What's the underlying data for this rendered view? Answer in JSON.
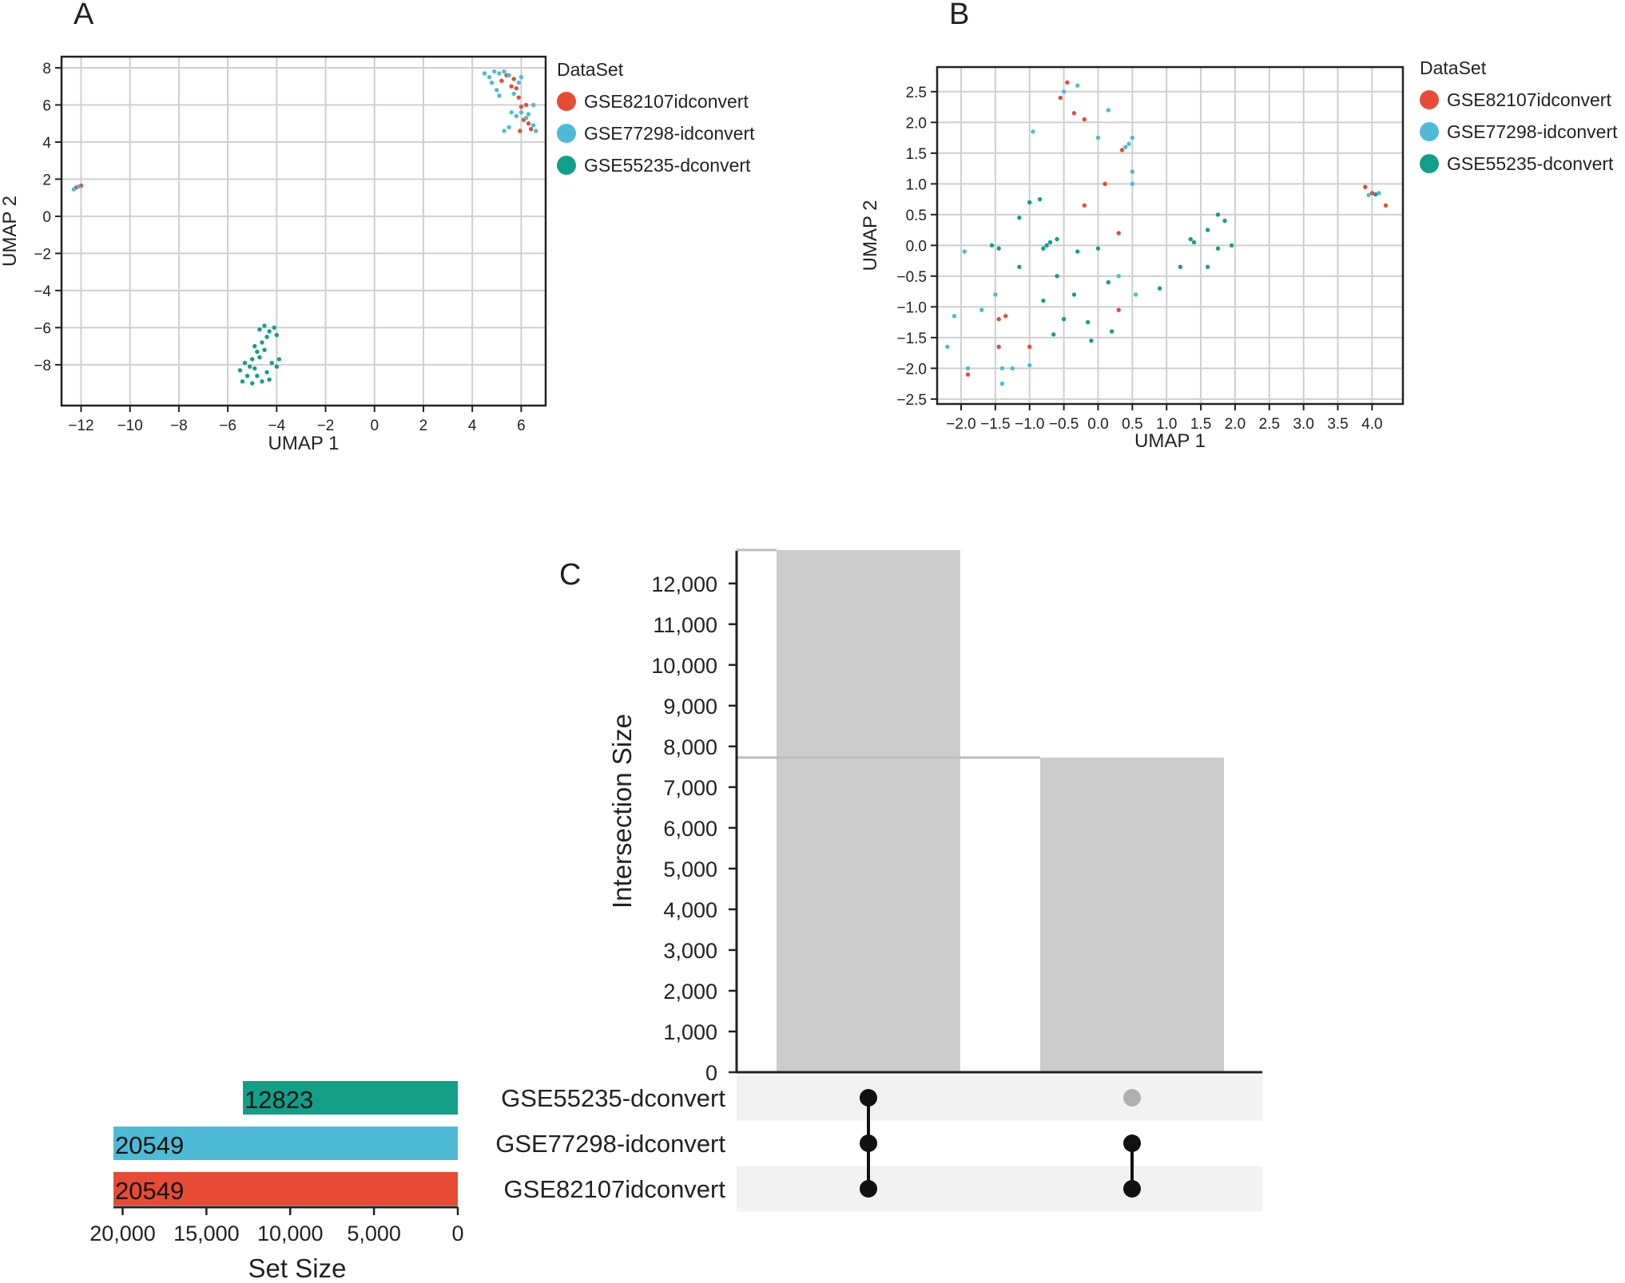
{
  "panels": {
    "a": {
      "label": "A"
    },
    "b": {
      "label": "B"
    },
    "c": {
      "label": "C"
    }
  },
  "legend": {
    "title": "DataSet",
    "entries": [
      {
        "name": "GSE82107idconvert",
        "color": "#E64B35"
      },
      {
        "name": "GSE77298-idconvert",
        "color": "#4DBBD5"
      },
      {
        "name": "GSE55235-dconvert",
        "color": "#139F87"
      }
    ]
  },
  "chart_data": [
    {
      "panel": "A",
      "type": "scatter",
      "xlabel": "UMAP 1",
      "ylabel": "UMAP 2",
      "xlim": [
        -12.8,
        7.0
      ],
      "ylim": [
        -10.2,
        8.6
      ],
      "xticks": [
        -12,
        -10,
        -8,
        -6,
        -4,
        -2,
        0,
        2,
        4,
        6
      ],
      "xtick_labels": [
        "−12",
        "−10",
        "−8",
        "−6",
        "−4",
        "−2",
        "0",
        "2",
        "4",
        "6"
      ],
      "yticks": [
        8,
        6,
        4,
        2,
        0,
        -2,
        -4,
        -6,
        -8
      ],
      "ytick_labels": [
        "8",
        "6",
        "4",
        "2",
        "0",
        "−2",
        "−4",
        "−6",
        "−8"
      ],
      "grid": true,
      "legend_position": "right",
      "series": [
        {
          "name": "GSE82107idconvert",
          "color": "#E64B35",
          "points": [
            [
              -12.2,
              1.55
            ],
            [
              -12.0,
              1.65
            ],
            [
              5.2,
              7.3
            ],
            [
              5.4,
              7.6
            ],
            [
              5.6,
              7.0
            ],
            [
              5.8,
              6.9
            ],
            [
              5.9,
              6.4
            ],
            [
              6.0,
              5.9
            ],
            [
              6.2,
              6.0
            ],
            [
              6.1,
              5.2
            ],
            [
              6.3,
              5.0
            ],
            [
              5.95,
              4.6
            ],
            [
              6.4,
              4.7
            ],
            [
              5.7,
              7.4
            ]
          ]
        },
        {
          "name": "GSE77298-idconvert",
          "color": "#4DBBD5",
          "points": [
            [
              -12.3,
              1.45
            ],
            [
              -12.1,
              1.6
            ],
            [
              4.5,
              7.7
            ],
            [
              4.7,
              7.5
            ],
            [
              4.9,
              7.8
            ],
            [
              5.1,
              7.7
            ],
            [
              5.3,
              7.8
            ],
            [
              4.8,
              7.2
            ],
            [
              5.0,
              6.8
            ],
            [
              5.1,
              6.5
            ],
            [
              5.5,
              7.6
            ],
            [
              5.7,
              6.6
            ],
            [
              5.9,
              7.2
            ],
            [
              6.0,
              7.5
            ],
            [
              5.6,
              5.6
            ],
            [
              5.8,
              5.4
            ],
            [
              6.0,
              5.6
            ],
            [
              6.2,
              5.3
            ],
            [
              6.5,
              4.9
            ],
            [
              6.6,
              4.6
            ],
            [
              5.3,
              4.6
            ],
            [
              5.5,
              4.8
            ],
            [
              6.3,
              5.5
            ],
            [
              6.5,
              6.0
            ]
          ]
        },
        {
          "name": "GSE55235-dconvert",
          "color": "#139F87",
          "points": [
            [
              -5.3,
              -7.9
            ],
            [
              -5.5,
              -8.3
            ],
            [
              -5.2,
              -8.6
            ],
            [
              -4.9,
              -8.2
            ],
            [
              -5.0,
              -7.7
            ],
            [
              -4.8,
              -7.3
            ],
            [
              -4.6,
              -6.8
            ],
            [
              -4.7,
              -6.1
            ],
            [
              -4.5,
              -5.9
            ],
            [
              -4.3,
              -6.2
            ],
            [
              -4.1,
              -6.0
            ],
            [
              -4.0,
              -6.4
            ],
            [
              -4.4,
              -6.5
            ],
            [
              -4.2,
              -7.9
            ],
            [
              -4.0,
              -8.1
            ],
            [
              -3.9,
              -7.7
            ],
            [
              -4.6,
              -8.9
            ],
            [
              -4.8,
              -8.6
            ],
            [
              -5.0,
              -9.0
            ],
            [
              -5.1,
              -8.1
            ],
            [
              -4.4,
              -8.4
            ],
            [
              -4.3,
              -8.8
            ],
            [
              -4.7,
              -7.6
            ],
            [
              -4.5,
              -7.2
            ],
            [
              -5.4,
              -8.9
            ],
            [
              -4.9,
              -7.0
            ]
          ]
        }
      ]
    },
    {
      "panel": "B",
      "type": "scatter",
      "xlabel": "UMAP 1",
      "ylabel": "UMAP 2",
      "xlim": [
        -2.35,
        4.45
      ],
      "ylim": [
        -2.58,
        2.9
      ],
      "xticks": [
        -2.0,
        -1.5,
        -1.0,
        -0.5,
        0.0,
        0.5,
        1.0,
        1.5,
        2.0,
        2.5,
        3.0,
        3.5,
        4.0
      ],
      "xtick_labels": [
        "−2.0",
        "−1.5",
        "−1.0",
        "−0.5",
        "0.0",
        "0.5",
        "1.0",
        "1.5",
        "2.0",
        "2.5",
        "3.0",
        "3.5",
        "4.0"
      ],
      "yticks": [
        2.5,
        2.0,
        1.5,
        1.0,
        0.5,
        0.0,
        -0.5,
        -1.0,
        -1.5,
        -2.0,
        -2.5
      ],
      "ytick_labels": [
        "2.5",
        "2.0",
        "1.5",
        "1.0",
        "0.5",
        "0.0",
        "−0.5",
        "−1.0",
        "−1.5",
        "−2.0",
        "−2.5"
      ],
      "grid": true,
      "legend_position": "right",
      "series": [
        {
          "name": "GSE82107idconvert",
          "color": "#E64B35",
          "points": [
            [
              -0.45,
              2.65
            ],
            [
              -0.55,
              2.4
            ],
            [
              -0.35,
              2.15
            ],
            [
              -0.2,
              2.05
            ],
            [
              0.35,
              1.55
            ],
            [
              0.1,
              1.0
            ],
            [
              -0.2,
              0.65
            ],
            [
              0.3,
              0.2
            ],
            [
              0.3,
              -1.05
            ],
            [
              -1.35,
              -1.15
            ],
            [
              -1.45,
              -1.2
            ],
            [
              -1.45,
              -1.65
            ],
            [
              -1.0,
              -1.65
            ],
            [
              -1.9,
              -2.1
            ],
            [
              3.9,
              0.95
            ],
            [
              4.2,
              0.65
            ],
            [
              4.0,
              0.85
            ]
          ]
        },
        {
          "name": "GSE77298-idconvert",
          "color": "#4DBBD5",
          "points": [
            [
              -0.3,
              2.6
            ],
            [
              -0.5,
              2.5
            ],
            [
              0.15,
              2.2
            ],
            [
              -0.95,
              1.85
            ],
            [
              0.0,
              1.75
            ],
            [
              0.5,
              1.75
            ],
            [
              0.45,
              1.65
            ],
            [
              0.4,
              1.6
            ],
            [
              0.5,
              1.2
            ],
            [
              0.5,
              1.0
            ],
            [
              0.3,
              -0.5
            ],
            [
              0.55,
              -0.8
            ],
            [
              -1.95,
              -0.1
            ],
            [
              -1.5,
              -0.8
            ],
            [
              -1.7,
              -1.05
            ],
            [
              -2.1,
              -1.15
            ],
            [
              -2.2,
              -1.65
            ],
            [
              -1.4,
              -2.0
            ],
            [
              -1.25,
              -2.0
            ],
            [
              -1.0,
              -1.95
            ],
            [
              -1.9,
              -2.0
            ],
            [
              -1.4,
              -2.25
            ],
            [
              3.95,
              0.82
            ],
            [
              4.1,
              0.85
            ]
          ]
        },
        {
          "name": "GSE55235-dconvert",
          "color": "#139F87",
          "points": [
            [
              -0.85,
              0.75
            ],
            [
              -1.0,
              0.7
            ],
            [
              -1.15,
              0.45
            ],
            [
              -0.8,
              -0.05
            ],
            [
              -0.75,
              0.0
            ],
            [
              -0.7,
              0.05
            ],
            [
              -0.6,
              0.1
            ],
            [
              -1.45,
              -0.05
            ],
            [
              -1.55,
              0.0
            ],
            [
              -0.3,
              -0.1
            ],
            [
              0.0,
              -0.05
            ],
            [
              -0.6,
              -0.5
            ],
            [
              -0.8,
              -0.9
            ],
            [
              -0.35,
              -0.8
            ],
            [
              -0.5,
              -1.2
            ],
            [
              -0.15,
              -1.25
            ],
            [
              0.15,
              -0.6
            ],
            [
              0.9,
              -0.7
            ],
            [
              -0.65,
              -1.45
            ],
            [
              -0.1,
              -1.55
            ],
            [
              0.2,
              -1.4
            ],
            [
              -1.15,
              -0.35
            ],
            [
              1.2,
              -0.35
            ],
            [
              1.4,
              0.05
            ],
            [
              1.35,
              0.1
            ],
            [
              1.6,
              0.25
            ],
            [
              1.75,
              0.5
            ],
            [
              1.85,
              0.4
            ],
            [
              1.95,
              0.0
            ],
            [
              1.75,
              -0.05
            ],
            [
              1.6,
              -0.35
            ],
            [
              4.05,
              0.83
            ]
          ]
        }
      ]
    },
    {
      "panel": "C",
      "type": "bar",
      "ylabel": "Intersection Size",
      "ylim": [
        0,
        12800
      ],
      "yticks": [
        0,
        1000,
        2000,
        3000,
        4000,
        5000,
        6000,
        7000,
        8000,
        9000,
        10000,
        11000,
        12000
      ],
      "ytick_labels": [
        "0",
        "1,000",
        "2,000",
        "3,000",
        "4,000",
        "5,000",
        "6,000",
        "7,000",
        "8,000",
        "9,000",
        "10,000",
        "11,000",
        "12,000"
      ],
      "values": [
        12823,
        7726
      ],
      "bar_color": "#CCCCCC",
      "sets": [
        {
          "name": "GSE55235-dconvert",
          "size": 12823,
          "size_label": "12823",
          "color": "#139F87"
        },
        {
          "name": "GSE77298-idconvert",
          "size": 20549,
          "size_label": "20549",
          "color": "#4DBBD5"
        },
        {
          "name": "GSE82107idconvert",
          "size": 20549,
          "size_label": "20549",
          "color": "#E64B35"
        }
      ],
      "membership": [
        [
          true,
          true,
          true
        ],
        [
          false,
          true,
          true
        ]
      ],
      "set_size_xlabel": "Set Size",
      "set_size_xlim": [
        0,
        20549
      ],
      "set_size_ticks": [
        20000,
        15000,
        10000,
        5000,
        0
      ],
      "set_size_tick_labels": [
        "20,000",
        "15,000",
        "10,000",
        "5,000",
        "0"
      ]
    }
  ]
}
